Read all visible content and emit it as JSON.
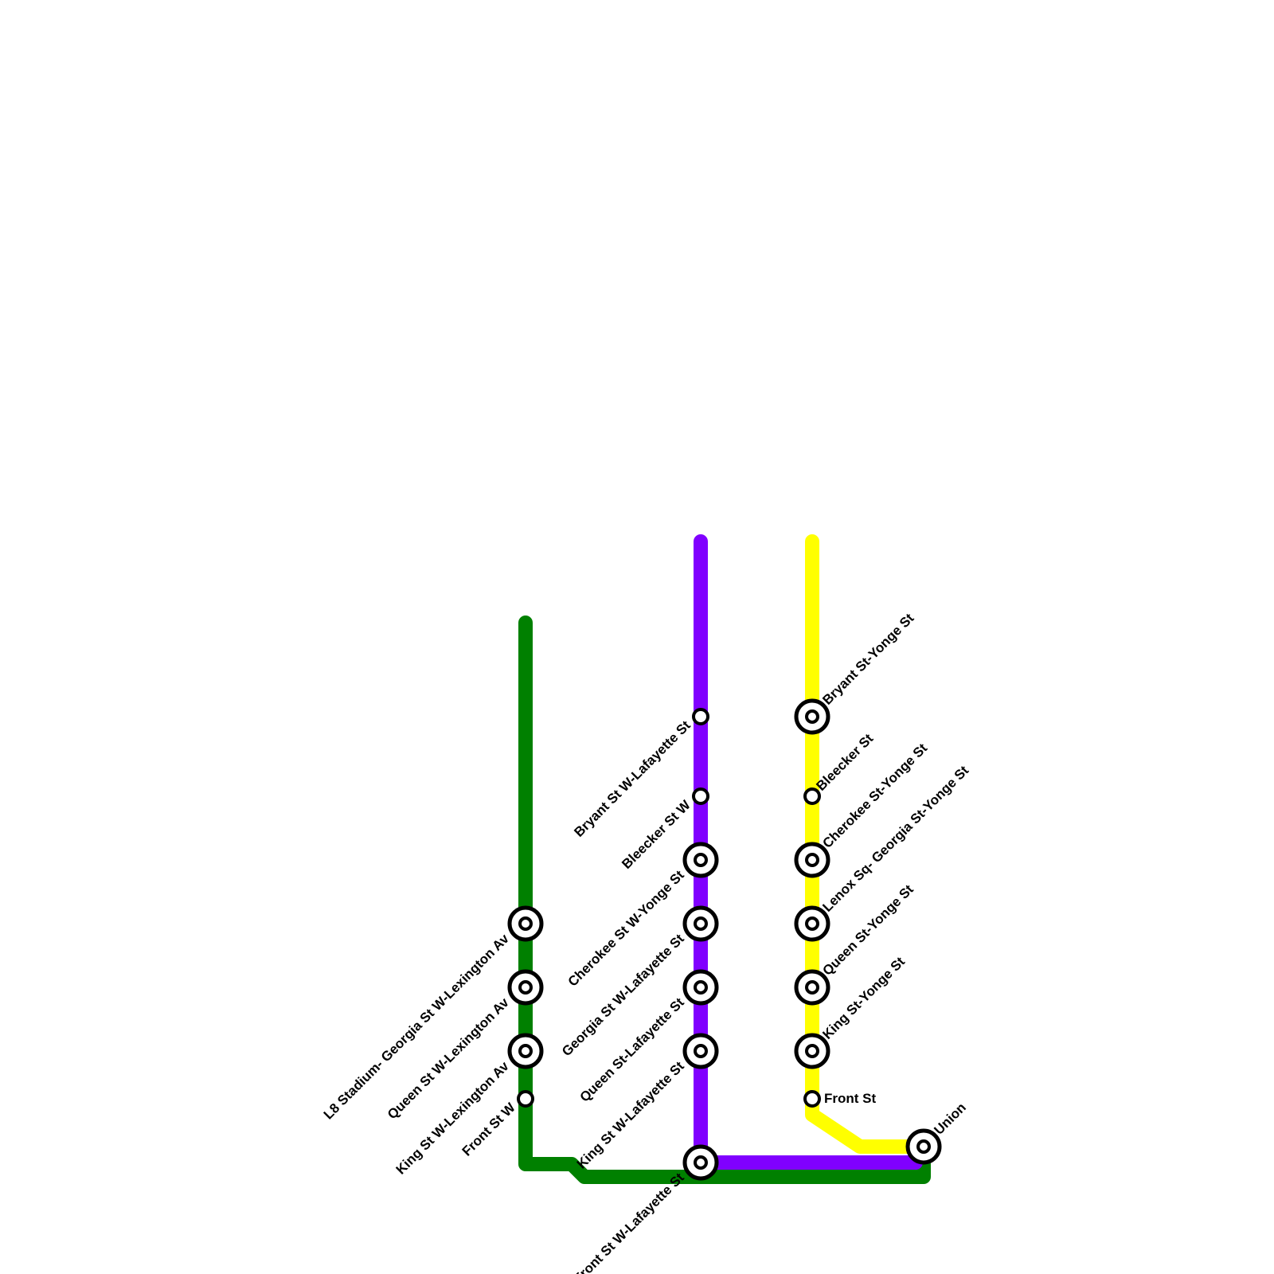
{
  "stations": [
    {
      "label": "L8 Stadium- Georgia St W-Lexington Av"
    },
    {
      "label": "Queen St W-Lexington Av"
    },
    {
      "label": "King St W-Lexington Av"
    },
    {
      "label": "Front St W"
    },
    {
      "label": "Bryant St W-Lafayette St"
    },
    {
      "label": "Bleecker St W"
    },
    {
      "label": "Cherokee St W-Yonge St"
    },
    {
      "label": "Georgia St W-Lafayette St"
    },
    {
      "label": "Queen St-Lafayette St"
    },
    {
      "label": "King St W-Lafayette St"
    },
    {
      "label": "Front St W-Lafayette St"
    },
    {
      "label": "Bryant St-Yonge St"
    },
    {
      "label": "Bleecker St"
    },
    {
      "label": "Cherokee St-Yonge St"
    },
    {
      "label": "Lenox Sq- Georgia St-Yonge St"
    },
    {
      "label": "Queen St-Yonge St"
    },
    {
      "label": "King St-Yonge St"
    },
    {
      "label": "Front St"
    },
    {
      "label": "Union"
    }
  ]
}
